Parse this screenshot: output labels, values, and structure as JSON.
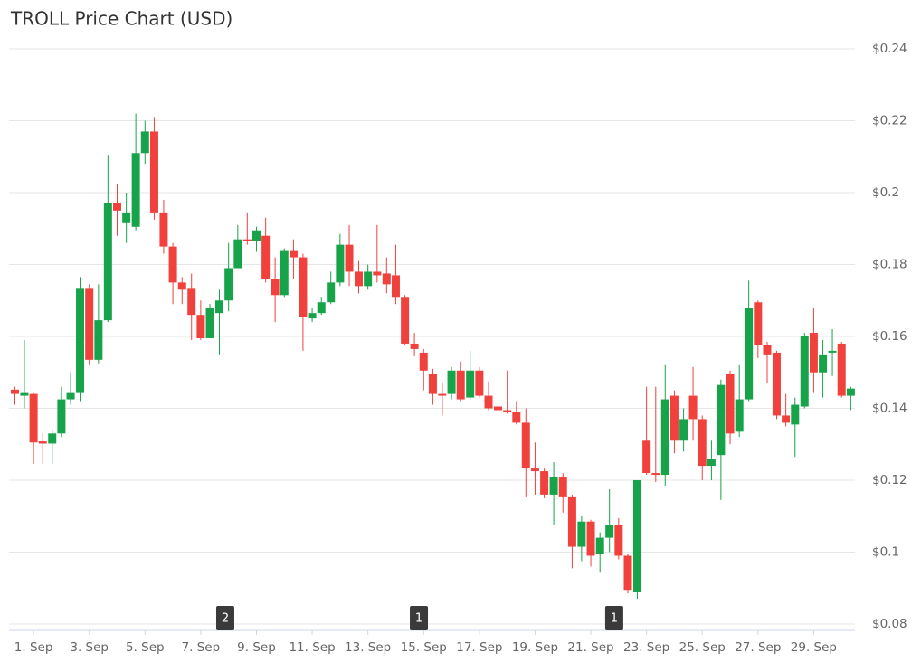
{
  "chart_data": {
    "type": "candlestick",
    "title": "TROLL Price Chart (USD)",
    "x": [
      0.33,
      0.67,
      1,
      1.33,
      1.67,
      2,
      2.33,
      2.67,
      3,
      3.33,
      3.67,
      4,
      4.33,
      4.67,
      5,
      5.33,
      5.67,
      6,
      6.33,
      6.67,
      7,
      7.33,
      7.67,
      8,
      8.33,
      8.67,
      9,
      9.33,
      9.67,
      10,
      10.33,
      10.67,
      11,
      11.33,
      11.67,
      12,
      12.33,
      12.67,
      13,
      13.33,
      13.67,
      14,
      14.33,
      14.67,
      15,
      15.33,
      15.67,
      16,
      16.33,
      16.67,
      17,
      17.33,
      17.67,
      18,
      18.33,
      18.67,
      19,
      19.33,
      19.67,
      20,
      20.33,
      20.67,
      21,
      21.33,
      21.67,
      22,
      22.33,
      22.67,
      23,
      23.33,
      23.67,
      24,
      24.33,
      24.67,
      25,
      25.33,
      25.67,
      26,
      26.33,
      26.67,
      27,
      27.33,
      27.67,
      28,
      28.33,
      28.67,
      29,
      29.33,
      29.67,
      30,
      30.33
    ],
    "open": [
      0.1452,
      0.1435,
      0.144,
      0.1308,
      0.1302,
      0.133,
      0.1425,
      0.1445,
      0.1735,
      0.1535,
      0.1645,
      0.197,
      0.1915,
      0.1905,
      0.211,
      0.217,
      0.1945,
      0.185,
      0.175,
      0.1735,
      0.166,
      0.1595,
      0.1665,
      0.17,
      0.179,
      0.187,
      0.1865,
      0.188,
      0.176,
      0.1715,
      0.184,
      0.182,
      0.165,
      0.1665,
      0.1695,
      0.175,
      0.1855,
      0.178,
      0.174,
      0.178,
      0.1775,
      0.177,
      0.171,
      0.158,
      0.1555,
      0.1495,
      0.144,
      0.144,
      0.1505,
      0.143,
      0.1505,
      0.1435,
      0.1405,
      0.1395,
      0.139,
      0.136,
      0.1235,
      0.1225,
      0.116,
      0.121,
      0.1155,
      0.1015,
      0.1085,
      0.0995,
      0.104,
      0.1075,
      0.099,
      0.089,
      0.131,
      0.122,
      0.1215,
      0.1435,
      0.131,
      0.1435,
      0.137,
      0.124,
      0.127,
      0.1495,
      0.1335,
      0.1425,
      0.1695,
      0.1575,
      0.1555,
      0.138,
      0.1355,
      0.1405,
      0.161,
      0.15,
      0.1555,
      0.158,
      0.1435
    ],
    "high": [
      0.146,
      0.159,
      0.1445,
      0.133,
      0.134,
      0.146,
      0.15,
      0.1765,
      0.1745,
      0.1745,
      0.2105,
      0.2025,
      0.2,
      0.222,
      0.22,
      0.221,
      0.198,
      0.186,
      0.1765,
      0.1775,
      0.17,
      0.169,
      0.173,
      0.186,
      0.191,
      0.1945,
      0.1905,
      0.193,
      0.182,
      0.1845,
      0.187,
      0.183,
      0.168,
      0.171,
      0.178,
      0.1885,
      0.191,
      0.181,
      0.18,
      0.191,
      0.182,
      0.1855,
      0.1715,
      0.161,
      0.1565,
      0.151,
      0.147,
      0.1515,
      0.153,
      0.156,
      0.1515,
      0.1475,
      0.146,
      0.1505,
      0.142,
      0.14,
      0.1305,
      0.1235,
      0.125,
      0.122,
      0.116,
      0.11,
      0.109,
      0.1055,
      0.1175,
      0.1095,
      0.0995,
      0.12,
      0.146,
      0.146,
      0.152,
      0.145,
      0.14,
      0.1515,
      0.138,
      0.131,
      0.148,
      0.1505,
      0.152,
      0.1755,
      0.17,
      0.1585,
      0.156,
      0.144,
      0.143,
      0.161,
      0.168,
      0.159,
      0.162,
      0.1585,
      0.146
    ],
    "low": [
      0.141,
      0.14,
      0.1245,
      0.1245,
      0.1245,
      0.132,
      0.141,
      0.142,
      0.152,
      0.1525,
      0.164,
      0.188,
      0.186,
      0.1895,
      0.208,
      0.1925,
      0.183,
      0.169,
      0.169,
      0.159,
      0.159,
      0.1595,
      0.155,
      0.167,
      0.179,
      0.1855,
      0.1835,
      0.175,
      0.164,
      0.171,
      0.176,
      0.156,
      0.164,
      0.166,
      0.169,
      0.174,
      0.174,
      0.172,
      0.173,
      0.175,
      0.172,
      0.169,
      0.1575,
      0.1545,
      0.145,
      0.141,
      0.138,
      0.1425,
      0.142,
      0.1425,
      0.143,
      0.1395,
      0.133,
      0.1385,
      0.1355,
      0.1155,
      0.116,
      0.115,
      0.1075,
      0.111,
      0.0955,
      0.0975,
      0.096,
      0.0945,
      0.1,
      0.098,
      0.0885,
      0.087,
      0.1215,
      0.1195,
      0.1185,
      0.1275,
      0.128,
      0.131,
      0.12,
      0.12,
      0.1145,
      0.13,
      0.132,
      0.142,
      0.154,
      0.147,
      0.137,
      0.135,
      0.1265,
      0.14,
      0.1445,
      0.143,
      0.149,
      0.143,
      0.1395
    ],
    "close": [
      0.144,
      0.1445,
      0.1305,
      0.1302,
      0.133,
      0.1425,
      0.1445,
      0.1735,
      0.1535,
      0.1645,
      0.197,
      0.195,
      0.1945,
      0.211,
      0.217,
      0.1945,
      0.185,
      0.175,
      0.173,
      0.166,
      0.1595,
      0.168,
      0.17,
      0.179,
      0.187,
      0.1865,
      0.1895,
      0.176,
      0.1715,
      0.184,
      0.182,
      0.1655,
      0.1665,
      0.1695,
      0.175,
      0.1855,
      0.178,
      0.174,
      0.178,
      0.177,
      0.1745,
      0.171,
      0.158,
      0.1565,
      0.1505,
      0.144,
      0.1435,
      0.1505,
      0.1425,
      0.1505,
      0.1435,
      0.14,
      0.1395,
      0.139,
      0.136,
      0.1235,
      0.1225,
      0.116,
      0.121,
      0.1155,
      0.1015,
      0.1085,
      0.099,
      0.104,
      0.1075,
      0.099,
      0.0895,
      0.12,
      0.122,
      0.1215,
      0.1425,
      0.131,
      0.137,
      0.137,
      0.124,
      0.126,
      0.1465,
      0.133,
      0.1425,
      0.168,
      0.1575,
      0.155,
      0.138,
      0.136,
      0.141,
      0.16,
      0.15,
      0.155,
      0.156,
      0.1435,
      0.1455
    ],
    "up_color": "#16a34a",
    "down_color": "#f0413d",
    "xlim": [
      0.12,
      30.48
    ],
    "xticks": [
      {
        "value": 1,
        "label": "1. Sep"
      },
      {
        "value": 3,
        "label": "3. Sep"
      },
      {
        "value": 5,
        "label": "5. Sep"
      },
      {
        "value": 7,
        "label": "7. Sep"
      },
      {
        "value": 9,
        "label": "9. Sep"
      },
      {
        "value": 11,
        "label": "11. Sep"
      },
      {
        "value": 13,
        "label": "13. Sep"
      },
      {
        "value": 15,
        "label": "15. Sep"
      },
      {
        "value": 17,
        "label": "17. Sep"
      },
      {
        "value": 19,
        "label": "19. Sep"
      },
      {
        "value": 21,
        "label": "21. Sep"
      },
      {
        "value": 23,
        "label": "23. Sep"
      },
      {
        "value": 25,
        "label": "25. Sep"
      },
      {
        "value": 27,
        "label": "27. Sep"
      },
      {
        "value": 29,
        "label": "29. Sep"
      }
    ],
    "ylim": [
      0.08,
      0.24
    ],
    "yticks": [
      {
        "value": 0.08,
        "label": "$0.08"
      },
      {
        "value": 0.1,
        "label": "$0.1"
      },
      {
        "value": 0.12,
        "label": "$0.12"
      },
      {
        "value": 0.14,
        "label": "$0.14"
      },
      {
        "value": 0.16,
        "label": "$0.16"
      },
      {
        "value": 0.18,
        "label": "$0.18"
      },
      {
        "value": 0.2,
        "label": "$0.2"
      },
      {
        "value": 0.22,
        "label": "$0.22"
      },
      {
        "value": 0.24,
        "label": "$0.24"
      }
    ],
    "grid": true,
    "events": [
      {
        "x": 7.88,
        "label": "2"
      },
      {
        "x": 14.83,
        "label": "1"
      },
      {
        "x": 21.84,
        "label": "1"
      }
    ]
  }
}
